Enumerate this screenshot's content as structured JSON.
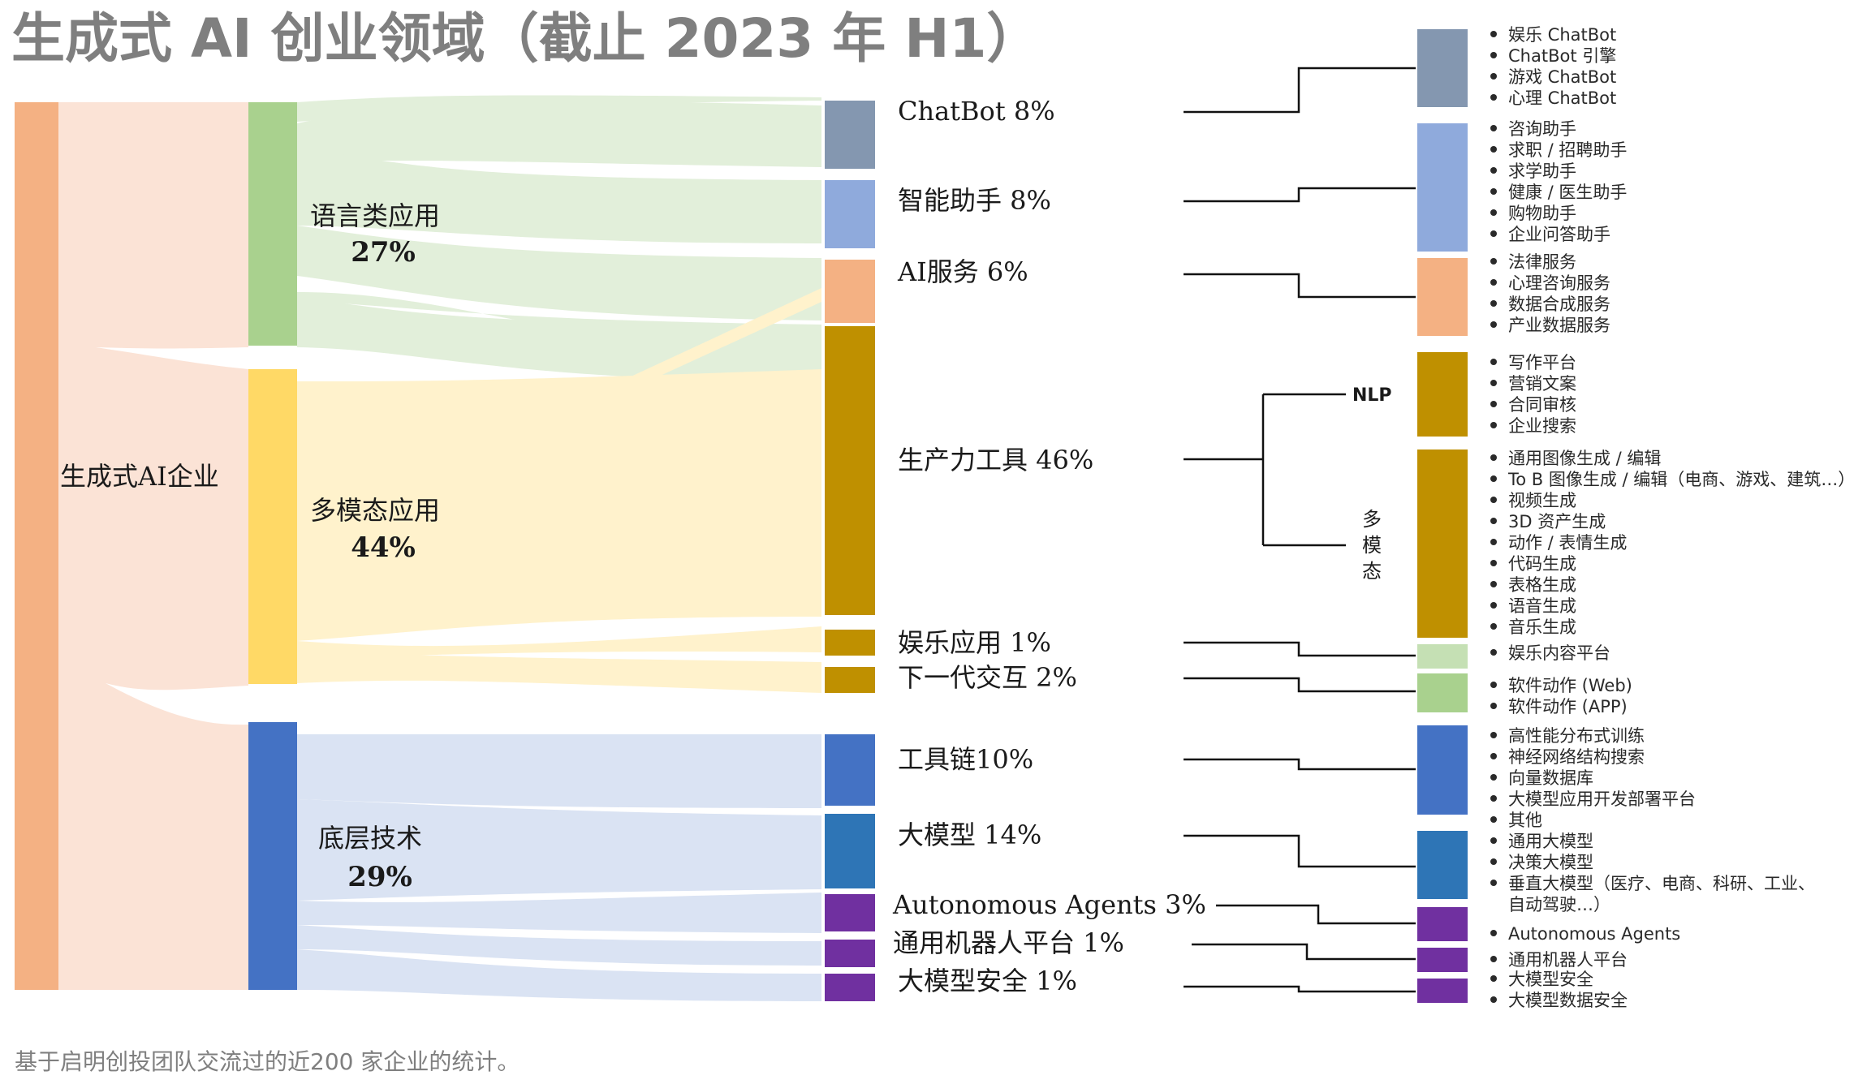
{
  "title": "生成式 AI 创业领域（截止 2023 年 H1）",
  "footnote": "基于启明创投团队交流过的近200 家企业的统计。",
  "root": {
    "label": "生成式AI企业"
  },
  "groups": [
    {
      "name": "语言类应用",
      "pct": "27%"
    },
    {
      "name": "多模态应用",
      "pct": "44%"
    },
    {
      "name": "底层技术",
      "pct": "29%"
    }
  ],
  "categories": [
    {
      "label": "ChatBot 8%"
    },
    {
      "label": "智能助手 8%"
    },
    {
      "label": "AI服务 6%"
    },
    {
      "label": "生产力工具 46%"
    },
    {
      "label": "娱乐应用 1%"
    },
    {
      "label": "下一代交互 2%"
    },
    {
      "label": "工具链10%"
    },
    {
      "label": "大模型 14%"
    },
    {
      "label": "Autonomous Agents 3%"
    },
    {
      "label": "通用机器人平台 1%"
    },
    {
      "label": "大模型安全 1%"
    }
  ],
  "branches": {
    "nlp": "NLP",
    "multimodal": [
      "多",
      "模",
      "态"
    ]
  },
  "detail_groups": [
    {
      "items": [
        "娱乐 ChatBot",
        "ChatBot 引擎",
        "游戏 ChatBot",
        "心理 ChatBot"
      ]
    },
    {
      "items": [
        "咨询助手",
        "求职 / 招聘助手",
        "求学助手",
        "健康 / 医生助手",
        "购物助手",
        "企业问答助手"
      ]
    },
    {
      "items": [
        "法律服务",
        "心理咨询服务",
        "数据合成服务",
        "产业数据服务"
      ]
    },
    {
      "items": [
        "写作平台",
        "营销文案",
        "合同审核",
        "企业搜索"
      ]
    },
    {
      "items": [
        "通用图像生成 / 编辑",
        "To B 图像生成 / 编辑（电商、游戏、建筑…）",
        "视频生成",
        "3D 资产生成",
        "动作 / 表情生成",
        "代码生成",
        "表格生成",
        "语音生成",
        "音乐生成"
      ]
    },
    {
      "items": [
        "娱乐内容平台"
      ]
    },
    {
      "items": [
        "软件动作 (Web)",
        "软件动作 (APP)"
      ]
    },
    {
      "items": [
        "高性能分布式训练",
        "神经网络结构搜索",
        "向量数据库",
        "大模型应用开发部署平台",
        "其他"
      ]
    },
    {
      "items": [
        "通用大模型",
        "决策大模型",
        "垂直大模型（医疗、电商、科研、工业、",
        "自动驾驶…）"
      ]
    },
    {
      "items": [
        "Autonomous Agents"
      ]
    },
    {
      "items": [
        "通用机器人平台"
      ]
    },
    {
      "items": [
        "大模型安全",
        "大模型数据安全"
      ]
    }
  ],
  "colors": {
    "root": "#f4b183",
    "root_flow": "#fbe3d6",
    "language": "#a9d18e",
    "language_flow": "#e2efda",
    "multimodal": "#ffd966",
    "multimodal_flow": "#fff2cc",
    "tech": "#4472c4",
    "tech_flow": "#dae3f3",
    "chatbot": "#8497b0",
    "assistant": "#8faadc",
    "service": "#f4b183",
    "productivity": "#bf9000",
    "agents": "#7030a0",
    "model": "#2e75b6",
    "ent_light": "#c5e0b4",
    "nextgen_light": "#a9d18e"
  }
}
